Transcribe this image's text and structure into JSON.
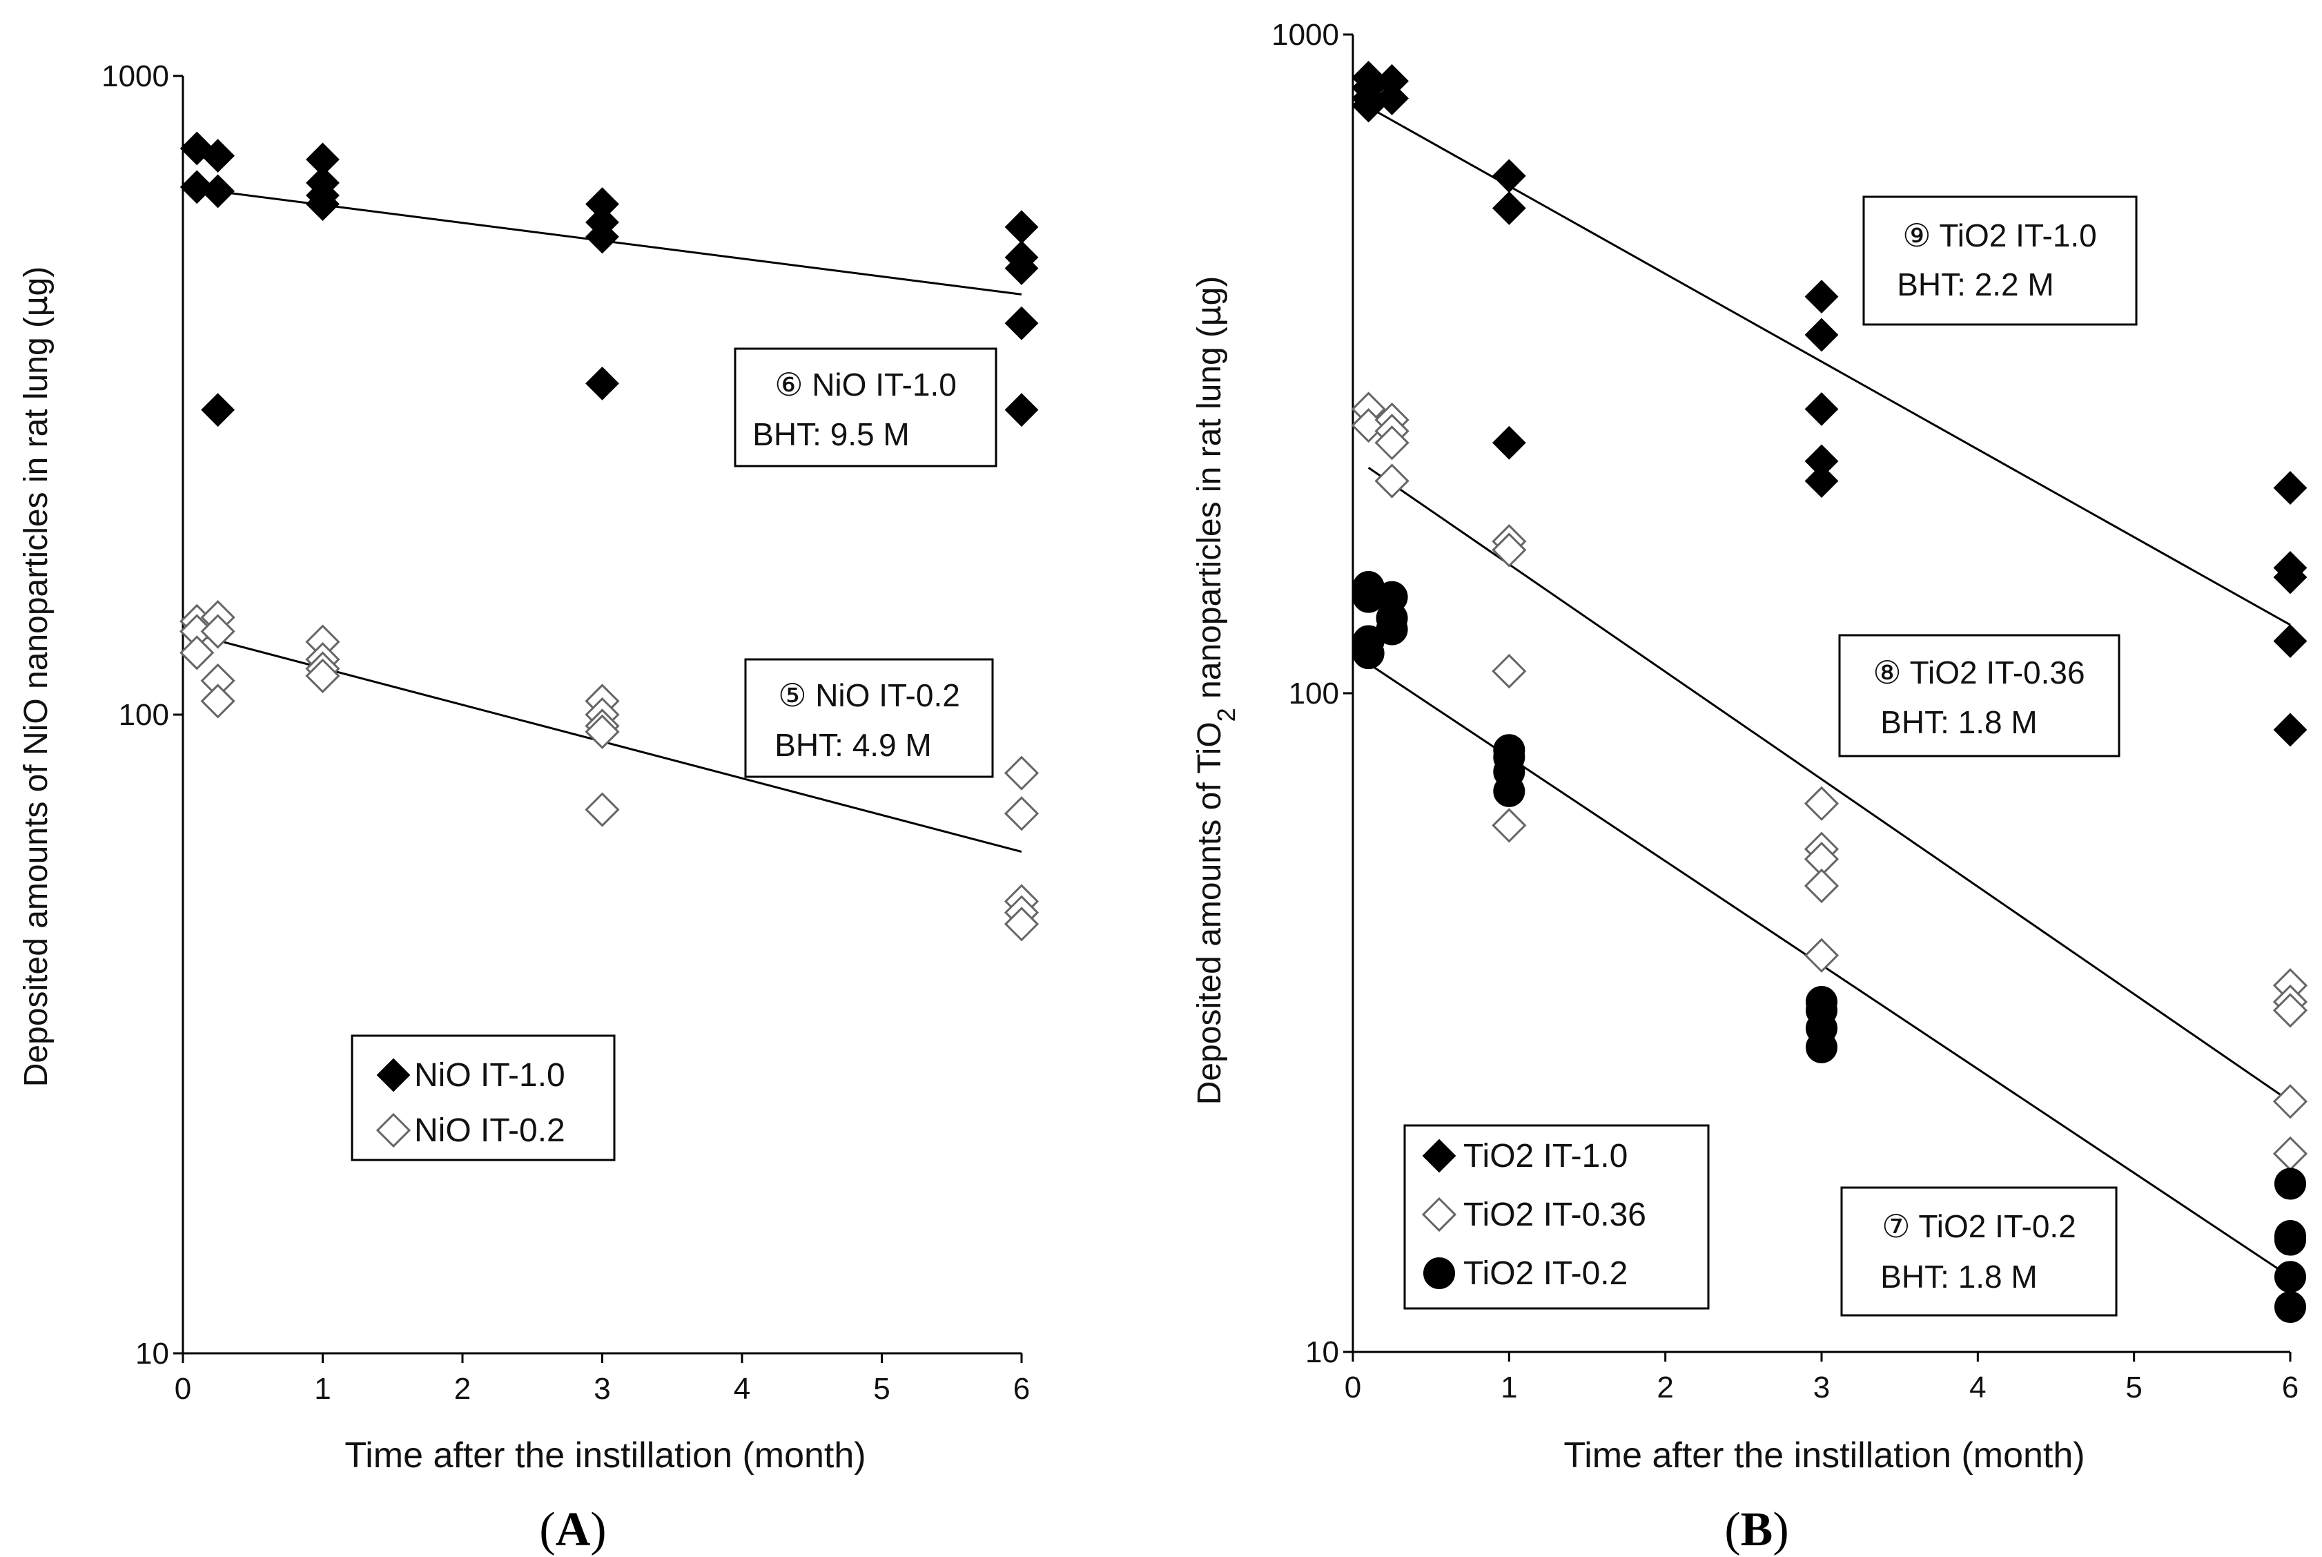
{
  "chart_data": [
    {
      "id": "A",
      "type": "scatter",
      "panel_label": "(A)",
      "ylabel_parts": [
        "Deposited amounts  of NiO nanoparticles in rat lung (",
        "μ",
        "g)"
      ],
      "xlabel": "Time after the instillation (month)",
      "xlim": [
        0,
        6
      ],
      "ylim": [
        10,
        1000
      ],
      "yscale": "log",
      "xticks": [
        "0",
        "1",
        "2",
        "3",
        "4",
        "5",
        "6"
      ],
      "yticks": [
        "10",
        "100",
        "1000"
      ],
      "series": [
        {
          "name": "NiO IT-1.0",
          "marker": "diamond-filled",
          "points": [
            [
              0.1,
              770
            ],
            [
              0.1,
              670
            ],
            [
              0.25,
              750
            ],
            [
              0.25,
              660
            ],
            [
              0.25,
              300
            ],
            [
              1,
              740
            ],
            [
              1,
              680
            ],
            [
              1,
              650
            ],
            [
              1,
              630
            ],
            [
              3,
              630
            ],
            [
              3,
              590
            ],
            [
              3,
              560
            ],
            [
              3,
              330
            ],
            [
              6,
              580
            ],
            [
              6,
              520
            ],
            [
              6,
              500
            ],
            [
              6,
              410
            ],
            [
              6,
              300
            ]
          ],
          "fit": [
            [
              0,
              670
            ],
            [
              6,
              455
            ]
          ]
        },
        {
          "name": "NiO IT-0.2",
          "marker": "diamond-open",
          "points": [
            [
              0.1,
              140
            ],
            [
              0.1,
              135
            ],
            [
              0.1,
              125
            ],
            [
              0.25,
              142
            ],
            [
              0.25,
              135
            ],
            [
              0.25,
              113
            ],
            [
              0.25,
              105
            ],
            [
              1,
              130
            ],
            [
              1,
              122
            ],
            [
              1,
              118
            ],
            [
              1,
              115
            ],
            [
              3,
              105
            ],
            [
              3,
              100
            ],
            [
              3,
              96
            ],
            [
              3,
              94
            ],
            [
              3,
              71
            ],
            [
              6,
              81
            ],
            [
              6,
              70
            ],
            [
              6,
              51
            ],
            [
              6,
              49
            ],
            [
              6,
              47
            ]
          ],
          "fit": [
            [
              0,
              135
            ],
            [
              6,
              61
            ]
          ]
        }
      ],
      "annotations": [
        {
          "line1": "⑥ NiO IT-1.0",
          "line2": "BHT: 9.5 M"
        },
        {
          "line1": "⑤ NiO  IT-0.2",
          "line2": "BHT: 4.9 M"
        }
      ],
      "legend": [
        "NiO IT-1.0",
        "NiO IT-0.2"
      ]
    },
    {
      "id": "B",
      "type": "scatter",
      "panel_label": "(B)",
      "ylabel_parts": [
        "Deposited amounts  of  TiO",
        "2",
        " nanoparticles in rat lung (",
        "μ",
        "g)"
      ],
      "xlabel": "Time after the instillation (month)",
      "xlim": [
        0,
        6
      ],
      "ylim": [
        10,
        1000
      ],
      "yscale": "log",
      "xticks": [
        "0",
        "1",
        "2",
        "3",
        "4",
        "5",
        "6"
      ],
      "yticks": [
        "10",
        "100",
        "1000"
      ],
      "series": [
        {
          "name": "TiO2 IT-1.0",
          "marker": "diamond-filled",
          "points": [
            [
              0.1,
              860
            ],
            [
              0.1,
              830
            ],
            [
              0.1,
              800
            ],
            [
              0.1,
              780
            ],
            [
              0.25,
              850
            ],
            [
              0.25,
              800
            ],
            [
              1,
              610
            ],
            [
              1,
              545
            ],
            [
              1,
              240
            ],
            [
              3,
              400
            ],
            [
              3,
              350
            ],
            [
              3,
              270
            ],
            [
              3,
              225
            ],
            [
              3,
              210
            ],
            [
              6,
              205
            ],
            [
              6,
              155
            ],
            [
              6,
              150
            ],
            [
              6,
              120
            ],
            [
              6,
              88
            ]
          ],
          "fit": [
            [
              0,
              800
            ],
            [
              6,
              127
            ]
          ]
        },
        {
          "name": "TiO2 IT-0.36",
          "marker": "diamond-open",
          "points": [
            [
              0.1,
              270
            ],
            [
              0.1,
              255
            ],
            [
              0.25,
              260
            ],
            [
              0.25,
              250
            ],
            [
              0.25,
              240
            ],
            [
              0.25,
              210
            ],
            [
              1,
              170
            ],
            [
              1,
              165
            ],
            [
              1,
              108
            ],
            [
              1,
              63
            ],
            [
              3,
              68
            ],
            [
              3,
              58
            ],
            [
              3,
              56
            ],
            [
              3,
              51
            ],
            [
              3,
              40
            ],
            [
              6,
              36
            ],
            [
              6,
              34
            ],
            [
              6,
              33
            ],
            [
              6,
              24
            ],
            [
              6,
              20
            ]
          ],
          "fit": [
            [
              0.1,
              220
            ],
            [
              6,
              24
            ]
          ]
        },
        {
          "name": "TiO2 IT-0.2",
          "marker": "circle-filled",
          "points": [
            [
              0.1,
              145
            ],
            [
              0.1,
              140
            ],
            [
              0.1,
              120
            ],
            [
              0.1,
              115
            ],
            [
              0.25,
              140
            ],
            [
              0.25,
              130
            ],
            [
              0.25,
              125
            ],
            [
              1,
              82
            ],
            [
              1,
              80
            ],
            [
              1,
              76
            ],
            [
              1,
              71
            ],
            [
              3,
              34
            ],
            [
              3,
              33
            ],
            [
              3,
              31
            ],
            [
              3,
              29
            ],
            [
              6,
              18
            ],
            [
              6,
              15
            ],
            [
              6,
              14.8
            ],
            [
              6,
              13
            ],
            [
              6,
              11.7
            ]
          ],
          "fit": [
            [
              0,
              115
            ],
            [
              6,
              13
            ]
          ]
        }
      ],
      "annotations": [
        {
          "line1": "⑨ TiO2 IT-1.0",
          "line2": "BHT: 2.2 M"
        },
        {
          "line1": "⑧ TiO2 IT-0.36",
          "line2": "BHT: 1.8 M"
        },
        {
          "line1": "⑦ TiO2 IT-0.2",
          "line2": "BHT: 1.8 M"
        }
      ],
      "legend": [
        "TiO2 IT-1.0",
        "TiO2 IT-0.36",
        "TiO2 IT-0.2"
      ]
    }
  ]
}
